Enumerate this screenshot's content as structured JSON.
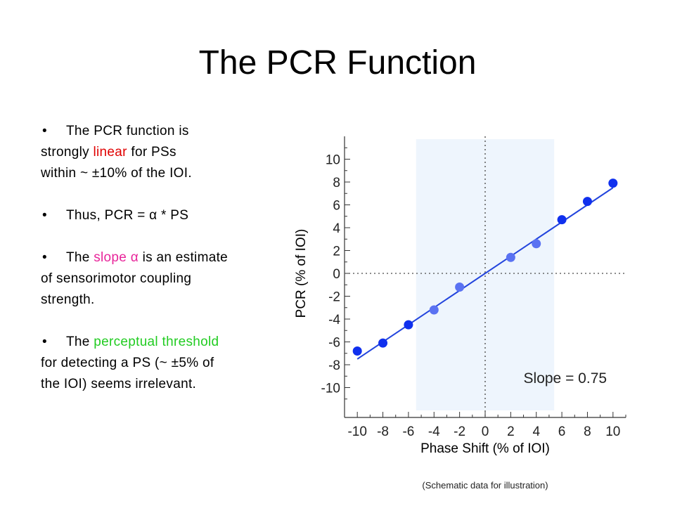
{
  "title": "The PCR Function",
  "bullets": {
    "b1": {
      "pre": "The PCR function is",
      "l2_pre": "strongly ",
      "l2_hi": "linear",
      "l2_post": " for PSs",
      "l3": "within ~ ±10% of the IOI."
    },
    "b2": {
      "text": "Thus, PCR = α * PS"
    },
    "b3": {
      "pre": "The ",
      "hi": "slope α",
      "post": " is an estimate",
      "l2": "of sensorimotor coupling",
      "l3": "strength."
    },
    "b4": {
      "pre": "The ",
      "hi": "perceptual threshold",
      "l2": "for detecting a PS (~ ±5% of",
      "l3": "the IOI) seems irrelevant."
    }
  },
  "colors": {
    "linear": "#e00000",
    "slope": "#e8259a",
    "threshold": "#22cc22",
    "point_dark": "#1030ee",
    "point_light": "#5a72f2",
    "fit_line": "#2244dd",
    "band": "#eef5fd"
  },
  "chart_data": {
    "type": "scatter",
    "xlabel": "Phase Shift (% of IOI)",
    "ylabel": "PCR (% of IOI)",
    "xlim": [
      -11,
      11
    ],
    "ylim": [
      -12,
      12
    ],
    "xticks": [
      -10,
      -8,
      -6,
      -4,
      -2,
      0,
      2,
      4,
      6,
      8,
      10
    ],
    "yticks": [
      10,
      8,
      6,
      4,
      2,
      0,
      -2,
      -4,
      -6,
      -8,
      -10
    ],
    "points": [
      {
        "x": -10,
        "y": -6.8,
        "shade": "dark"
      },
      {
        "x": -8,
        "y": -6.1,
        "shade": "dark"
      },
      {
        "x": -6,
        "y": -4.5,
        "shade": "dark"
      },
      {
        "x": -4,
        "y": -3.2,
        "shade": "light"
      },
      {
        "x": -2,
        "y": -1.2,
        "shade": "light"
      },
      {
        "x": 2,
        "y": 1.4,
        "shade": "light"
      },
      {
        "x": 4,
        "y": 2.6,
        "shade": "light"
      },
      {
        "x": 6,
        "y": 4.7,
        "shade": "dark"
      },
      {
        "x": 8,
        "y": 6.3,
        "shade": "dark"
      },
      {
        "x": 10,
        "y": 7.9,
        "shade": "dark"
      }
    ],
    "fit": {
      "slope": 0.75,
      "x_range": [
        -10,
        10
      ]
    },
    "threshold_band": [
      -5.4,
      5.4
    ],
    "zero_lines": true,
    "annotation": "Slope = 0.75"
  },
  "footnote": "(Schematic data for illustration)"
}
